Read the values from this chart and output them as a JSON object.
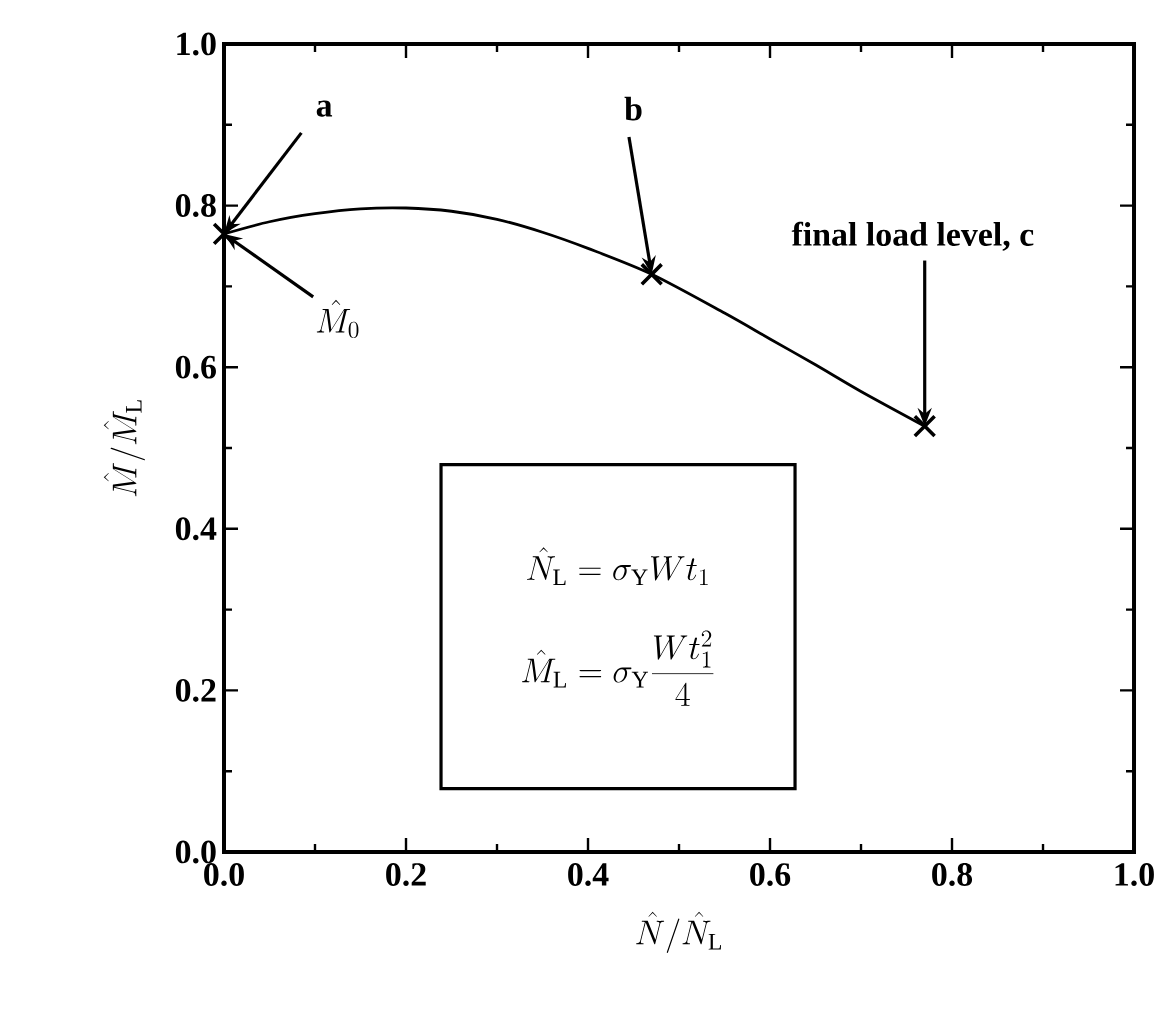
{
  "chart_data": {
    "type": "line",
    "xlabel": "\\hat{N}/\\hat{N}_{\\mathrm{L}}",
    "ylabel": "\\hat{M}/\\hat{M}_{\\mathrm{L}}",
    "xlim": [
      0,
      1
    ],
    "ylim": [
      0,
      1
    ],
    "xticks": [
      {
        "value": 0,
        "label": "0.0"
      },
      0.2,
      0.4,
      0.6,
      0.8,
      {
        "value": 1,
        "label": "1.0"
      }
    ],
    "yticks": [
      {
        "value": 0,
        "label": "0.0"
      },
      0.2,
      0.4,
      0.6,
      0.8,
      {
        "value": 1,
        "label": "1.0"
      }
    ],
    "series": [
      {
        "type": "line",
        "color": "#000000",
        "marker": "none",
        "line_style": "solid",
        "x": [
          0,
          0.05,
          0.1,
          0.15,
          0.2,
          0.25,
          0.3,
          0.35,
          0.4,
          0.47,
          0.55,
          0.6,
          0.65,
          0.7,
          0.77
        ],
        "values": [
          0.765,
          0.78,
          0.79,
          0.796,
          0.797,
          0.793,
          0.783,
          0.767,
          0.747,
          0.715,
          0.667,
          0.635,
          0.603,
          0.57,
          0.527
        ]
      },
      {
        "type": "scatter",
        "color": "#000000",
        "marker": "cross",
        "x": [
          0,
          0.47,
          0.77
        ],
        "values": [
          0.765,
          0.715,
          0.527
        ]
      }
    ],
    "annotations": [
      {
        "text": "a",
        "x": 0,
        "y": 0.765
      },
      {
        "text": "b",
        "x": 0.47,
        "y": 0.715
      },
      {
        "text": "final load level, c",
        "x": 0.77,
        "y": 0.527
      },
      {
        "text": "\\hat{M}_{0}",
        "x": 0,
        "y": 0.765
      },
      "\\hat{N}_{\\mathrm{L}} = \\sigma_{\\mathrm{Y}} W t_{1}",
      "\\hat{M}_{\\mathrm{L}} = \\sigma_{\\mathrm{Y}} \\frac{W t_{1}^{2}}{4}"
    ]
  }
}
